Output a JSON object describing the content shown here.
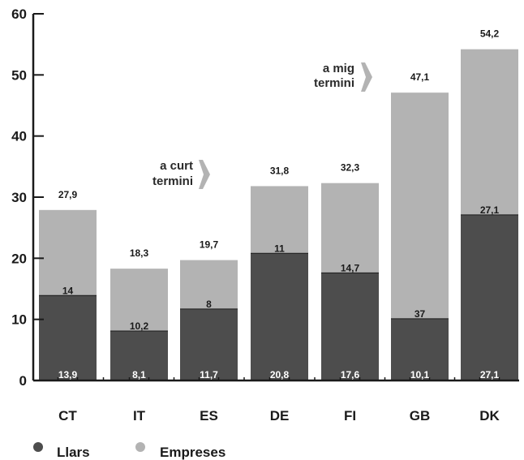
{
  "chart_data": {
    "type": "bar",
    "stacked": true,
    "categories": [
      "CT",
      "IT",
      "ES",
      "DE",
      "FI",
      "GB",
      "DK"
    ],
    "ylim": [
      0,
      60
    ],
    "yticks": [
      0,
      10,
      20,
      30,
      40,
      50,
      60
    ],
    "ytick_labels": [
      "0",
      "10",
      "20",
      "30",
      "40",
      "50",
      "60"
    ],
    "series": [
      {
        "name": "Llars",
        "color": "#4d4d4d",
        "values": [
          13.9,
          8.1,
          11.7,
          20.8,
          17.6,
          10.1,
          27.1
        ],
        "labels": [
          "13,9",
          "8,1",
          "11,7",
          "20,8",
          "17,6",
          "10,1",
          "27,1"
        ]
      },
      {
        "name": "Empreses",
        "color": "#b3b3b3",
        "values": [
          14,
          10.2,
          8,
          11,
          14.7,
          37,
          27.1
        ],
        "labels": [
          "14",
          "10,2",
          "8",
          "11",
          "14,7",
          "37",
          "27,1"
        ]
      }
    ],
    "totals": [
      27.9,
      18.3,
      19.7,
      31.8,
      32.3,
      47.1,
      54.2
    ],
    "total_labels": [
      "27,9",
      "18,3",
      "19,7",
      "31,8",
      "32,3",
      "47,1",
      "54,2"
    ],
    "annotations": [
      {
        "lines": [
          "a curt",
          "termini"
        ],
        "arrow_color": "#b3b3b3"
      },
      {
        "lines": [
          "a mig",
          "termini"
        ],
        "arrow_color": "#b3b3b3"
      }
    ],
    "legend_position": "bottom-left",
    "grid": false
  }
}
